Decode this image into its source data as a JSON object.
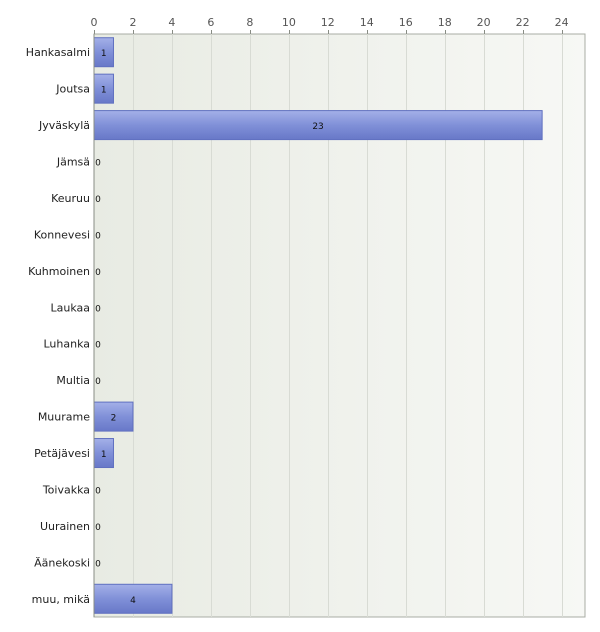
{
  "chart_data": {
    "type": "bar",
    "orientation": "horizontal",
    "categories": [
      "Hankasalmi",
      "Joutsa",
      "Jyväskylä",
      "Jämsä",
      "Keuruu",
      "Konnevesi",
      "Kuhmoinen",
      "Laukaa",
      "Luhanka",
      "Multia",
      "Muurame",
      "Petäjävesi",
      "Toivakka",
      "Uurainen",
      "Äänekoski",
      "muu, mikä"
    ],
    "values": [
      1,
      1,
      23,
      0,
      0,
      0,
      0,
      0,
      0,
      0,
      2,
      1,
      0,
      0,
      0,
      4
    ],
    "xlim": [
      0,
      25.2
    ],
    "xticks": [
      0,
      2,
      4,
      6,
      8,
      10,
      12,
      14,
      16,
      18,
      20,
      22,
      24
    ],
    "axis_position": "top",
    "grid": true,
    "title": "",
    "xlabel": "",
    "ylabel": "",
    "colors": {
      "bar_fill": "#8090d8",
      "bar_edge": "#6070c0",
      "plot_bg": "#eef0ea",
      "grid": "#d8dbd4"
    }
  }
}
